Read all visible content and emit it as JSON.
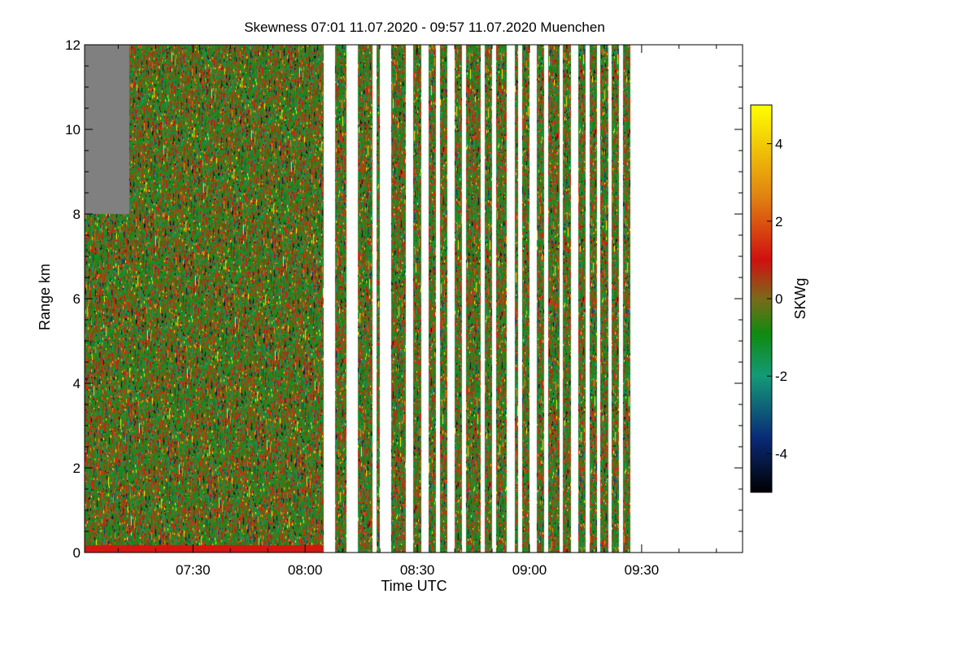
{
  "chart_data": {
    "type": "heatmap",
    "title": "Skewness",
    "time_range": "07:01 11.07.2020 - 09:57 11.07.2020",
    "location": "Muenchen",
    "xlabel": "Time UTC",
    "ylabel": "Range km",
    "colorbar_label": "SKWg",
    "x_range_minutes_utc": [
      421,
      597
    ],
    "y_range_km": [
      0,
      12
    ],
    "x_ticks": [
      {
        "label": "07:30",
        "minutes": 450
      },
      {
        "label": "08:00",
        "minutes": 480
      },
      {
        "label": "08:30",
        "minutes": 510
      },
      {
        "label": "09:00",
        "minutes": 540
      },
      {
        "label": "09:30",
        "minutes": 570
      }
    ],
    "y_ticks": [
      0,
      2,
      4,
      6,
      8,
      10,
      12
    ],
    "y_tick_labels": [
      "0",
      "2",
      "4",
      "6",
      "8",
      "10",
      "12"
    ],
    "colorbar_range": [
      -5,
      5
    ],
    "colorbar_ticks": [
      -4,
      -2,
      0,
      2,
      4
    ],
    "colorbar_tick_labels": [
      "-4",
      "-2",
      "0",
      "2",
      "4"
    ],
    "colorscale": [
      {
        "value": -5,
        "color": "#000000"
      },
      {
        "value": -3.6,
        "color": "#0a2a78"
      },
      {
        "value": -2,
        "color": "#139a77"
      },
      {
        "value": -0.9,
        "color": "#108a10"
      },
      {
        "value": 0,
        "color": "#7a6a1a"
      },
      {
        "value": 1,
        "color": "#d01010"
      },
      {
        "value": 2.6,
        "color": "#e08010"
      },
      {
        "value": 5,
        "color": "#ffff00"
      }
    ],
    "missing_value_color": "#808080",
    "data_coverage": {
      "continuous_period_minutes": [
        421,
        485
      ],
      "upper_missing_region": {
        "until_minutes": 433,
        "above_km": 8
      },
      "scan_blocks_minutes": [
        [
          488,
          491
        ],
        [
          494,
          498
        ],
        [
          499,
          500
        ],
        [
          503,
          507
        ],
        [
          509,
          511
        ],
        [
          513,
          515
        ],
        [
          516,
          518
        ],
        [
          520,
          522
        ],
        [
          523,
          527
        ],
        [
          528,
          530
        ],
        [
          531,
          534
        ],
        [
          536,
          537
        ],
        [
          538,
          540
        ],
        [
          542,
          544
        ],
        [
          545,
          548
        ],
        [
          549,
          551
        ],
        [
          553,
          555
        ],
        [
          556,
          558
        ],
        [
          559,
          561
        ],
        [
          562,
          564
        ],
        [
          565,
          567
        ]
      ]
    }
  }
}
